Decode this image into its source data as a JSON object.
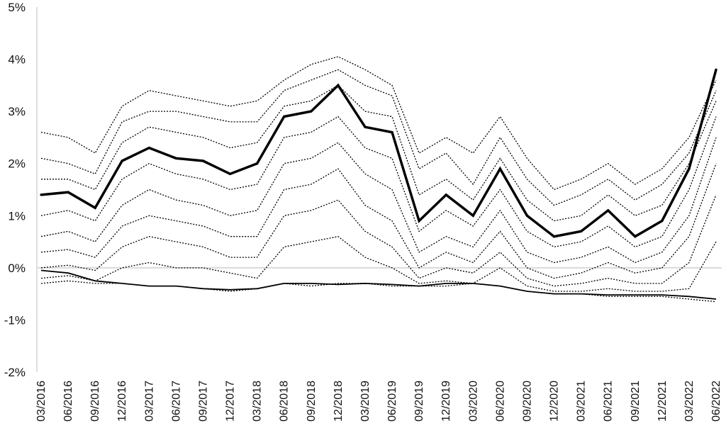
{
  "chart_data": {
    "type": "line",
    "title": "",
    "xlabel": "",
    "ylabel": "",
    "ylim": [
      -2,
      5
    ],
    "xlim": [
      "2016-03",
      "2022-07"
    ],
    "grid": false,
    "legend": "none",
    "y_ticks": [
      "-2%",
      "-1%",
      "0%",
      "1%",
      "2%",
      "3%",
      "4%",
      "5%"
    ],
    "x_ticks": [
      "03/2016",
      "06/2016",
      "09/2016",
      "12/2016",
      "03/2017",
      "06/2017",
      "09/2017",
      "12/2017",
      "03/2018",
      "06/2018",
      "09/2018",
      "12/2018",
      "03/2019",
      "06/2019",
      "09/2019",
      "12/2019",
      "03/2020",
      "06/2020",
      "09/2020",
      "12/2020",
      "03/2021",
      "06/2021",
      "09/2021",
      "12/2021",
      "03/2022",
      "06/2022"
    ],
    "colors": {
      "lines": "#000000",
      "zero_line": "#d9d9d9",
      "axis": "#bfbfbf"
    },
    "x": [
      "03/2016",
      "06/2016",
      "09/2016",
      "12/2016",
      "03/2017",
      "06/2017",
      "09/2017",
      "12/2017",
      "03/2018",
      "06/2018",
      "09/2018",
      "12/2018",
      "03/2019",
      "06/2019",
      "09/2019",
      "12/2019",
      "03/2020",
      "06/2020",
      "09/2020",
      "12/2020",
      "03/2021",
      "06/2021",
      "09/2021",
      "12/2021",
      "03/2022",
      "06/2022"
    ],
    "series": [
      {
        "style": "solid-bold",
        "values": [
          1.4,
          1.45,
          1.15,
          2.05,
          2.3,
          2.1,
          2.05,
          1.8,
          2.0,
          2.9,
          3.0,
          3.5,
          2.7,
          2.6,
          0.9,
          1.4,
          1.0,
          1.9,
          1.0,
          0.6,
          0.7,
          1.1,
          0.6,
          0.9,
          1.9,
          3.8
        ]
      },
      {
        "style": "dotted",
        "values": [
          2.6,
          2.5,
          2.2,
          3.1,
          3.4,
          3.3,
          3.2,
          3.1,
          3.2,
          3.6,
          3.9,
          4.05,
          3.8,
          3.5,
          2.2,
          2.5,
          2.2,
          2.9,
          2.1,
          1.5,
          1.7,
          2.0,
          1.6,
          1.9,
          2.5,
          3.6
        ]
      },
      {
        "style": "dotted",
        "values": [
          2.1,
          2.0,
          1.8,
          2.8,
          3.0,
          3.0,
          2.9,
          2.8,
          2.8,
          3.4,
          3.6,
          3.8,
          3.5,
          3.3,
          1.9,
          2.2,
          1.6,
          2.5,
          1.7,
          1.2,
          1.4,
          1.7,
          1.3,
          1.6,
          2.2,
          3.4
        ]
      },
      {
        "style": "dotted",
        "values": [
          1.7,
          1.7,
          1.5,
          2.4,
          2.7,
          2.6,
          2.5,
          2.3,
          2.4,
          3.1,
          3.2,
          3.5,
          3.0,
          2.9,
          1.4,
          1.7,
          1.3,
          2.1,
          1.3,
          0.9,
          1.0,
          1.4,
          1.0,
          1.2,
          2.0,
          3.2
        ]
      },
      {
        "style": "dotted",
        "values": [
          1.0,
          1.1,
          0.9,
          1.7,
          2.0,
          1.8,
          1.7,
          1.5,
          1.6,
          2.5,
          2.6,
          2.9,
          2.3,
          2.1,
          0.7,
          1.1,
          0.8,
          1.5,
          0.7,
          0.4,
          0.5,
          0.8,
          0.4,
          0.6,
          1.5,
          2.9
        ]
      },
      {
        "style": "dotted",
        "values": [
          0.6,
          0.7,
          0.5,
          1.2,
          1.5,
          1.3,
          1.2,
          1.0,
          1.1,
          2.0,
          2.1,
          2.4,
          1.8,
          1.5,
          0.3,
          0.6,
          0.4,
          1.1,
          0.3,
          0.1,
          0.2,
          0.4,
          0.1,
          0.3,
          1.0,
          2.5
        ]
      },
      {
        "style": "dotted",
        "values": [
          0.3,
          0.35,
          0.2,
          0.8,
          1.0,
          0.9,
          0.8,
          0.6,
          0.6,
          1.5,
          1.6,
          1.9,
          1.2,
          0.9,
          0.0,
          0.3,
          0.1,
          0.7,
          0.0,
          -0.2,
          -0.1,
          0.1,
          -0.1,
          0.0,
          0.6,
          2.0
        ]
      },
      {
        "style": "dotted",
        "values": [
          0.0,
          0.05,
          -0.05,
          0.4,
          0.6,
          0.5,
          0.4,
          0.2,
          0.2,
          1.0,
          1.1,
          1.3,
          0.7,
          0.4,
          -0.2,
          0.0,
          -0.1,
          0.3,
          -0.2,
          -0.35,
          -0.3,
          -0.2,
          -0.3,
          -0.3,
          0.1,
          1.4
        ]
      },
      {
        "style": "dotted",
        "values": [
          -0.2,
          -0.15,
          -0.25,
          0.0,
          0.1,
          0.0,
          0.0,
          -0.1,
          -0.2,
          0.4,
          0.5,
          0.6,
          0.2,
          0.0,
          -0.3,
          -0.25,
          -0.3,
          0.0,
          -0.35,
          -0.45,
          -0.45,
          -0.4,
          -0.45,
          -0.45,
          -0.4,
          0.5
        ]
      },
      {
        "style": "dotted",
        "values": [
          -0.3,
          -0.25,
          -0.3,
          -0.3,
          -0.35,
          -0.35,
          -0.4,
          -0.45,
          -0.4,
          -0.3,
          -0.35,
          -0.3,
          -0.3,
          -0.35,
          -0.35,
          -0.35,
          -0.3,
          -0.35,
          -0.45,
          -0.5,
          -0.5,
          -0.55,
          -0.55,
          -0.55,
          -0.6,
          -0.65
        ]
      },
      {
        "style": "solid",
        "values": [
          -0.05,
          -0.1,
          -0.25,
          -0.3,
          -0.35,
          -0.35,
          -0.4,
          -0.42,
          -0.4,
          -0.3,
          -0.3,
          -0.32,
          -0.3,
          -0.32,
          -0.35,
          -0.3,
          -0.3,
          -0.35,
          -0.45,
          -0.5,
          -0.5,
          -0.52,
          -0.52,
          -0.52,
          -0.55,
          -0.6
        ]
      }
    ]
  }
}
